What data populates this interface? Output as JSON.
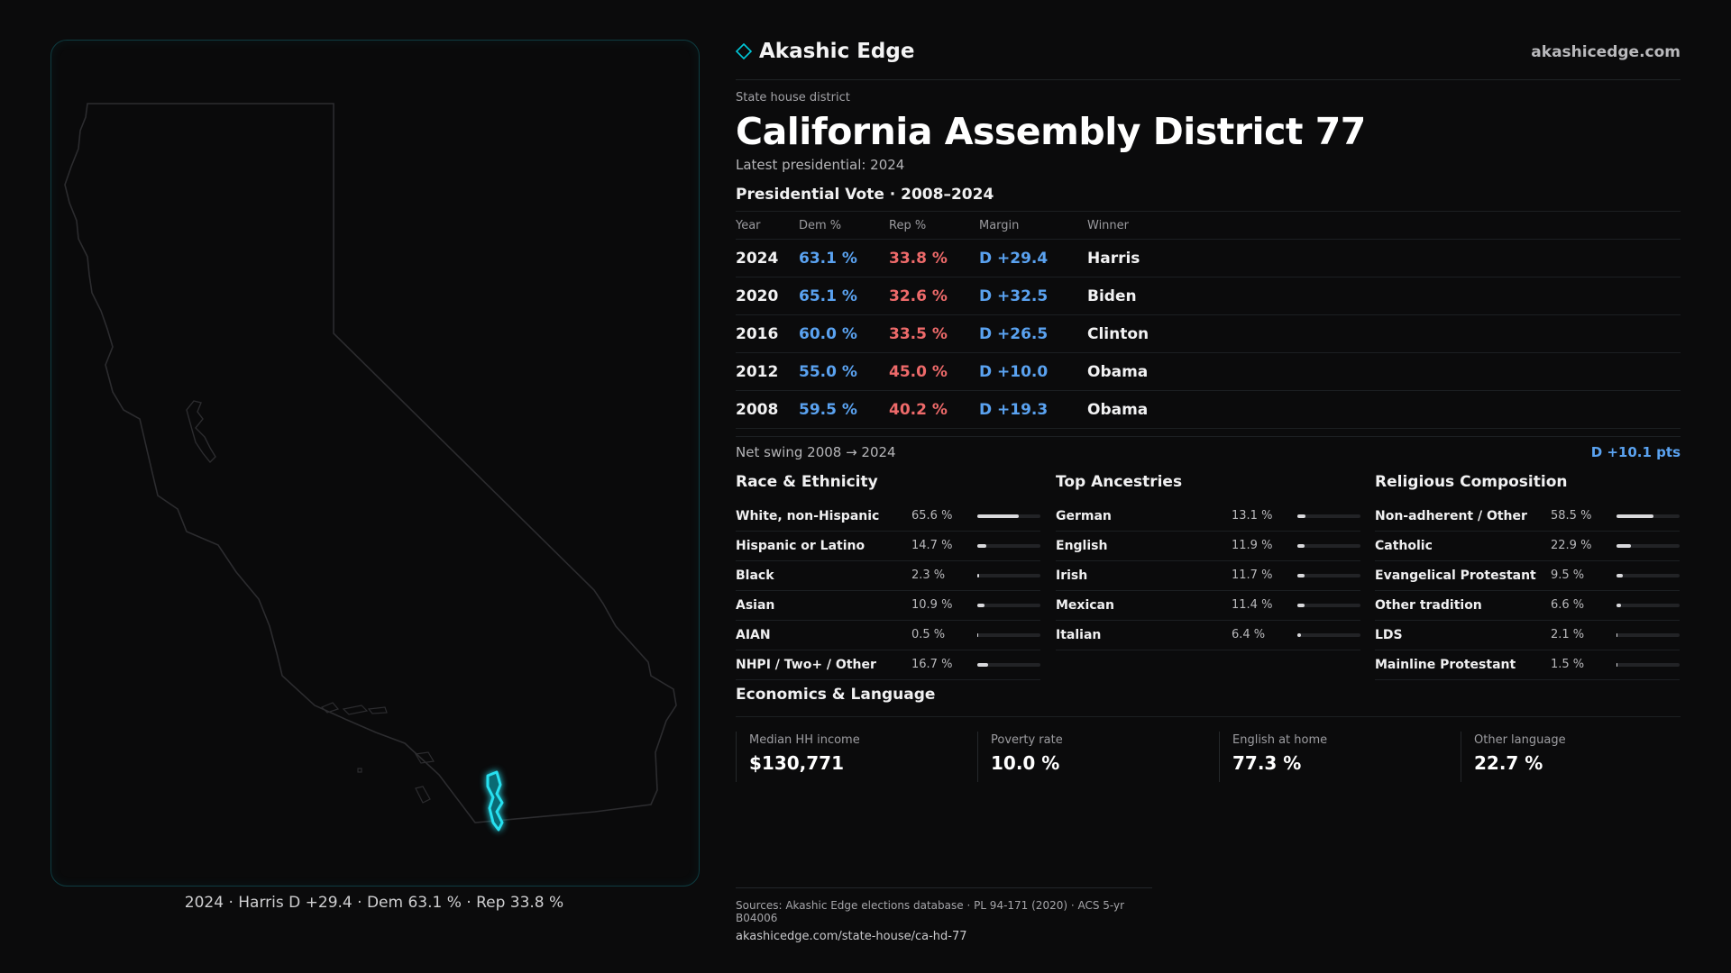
{
  "brand": {
    "name": "Akashic Edge",
    "url": "akashicedge.com",
    "accent": "#00c8d8"
  },
  "header": {
    "eyebrow": "State house district",
    "title": "California Assembly District 77",
    "subtitle": "Latest presidential: 2024"
  },
  "vote_table": {
    "title": "Presidential Vote · 2008–2024",
    "columns": [
      "Year",
      "Dem %",
      "Rep %",
      "Margin",
      "Winner"
    ],
    "rows": [
      {
        "year": "2024",
        "dem": "63.1 %",
        "rep": "33.8 %",
        "margin": "D +29.4",
        "winner": "Harris"
      },
      {
        "year": "2020",
        "dem": "65.1 %",
        "rep": "32.6 %",
        "margin": "D +32.5",
        "winner": "Biden"
      },
      {
        "year": "2016",
        "dem": "60.0 %",
        "rep": "33.5 %",
        "margin": "D +26.5",
        "winner": "Clinton"
      },
      {
        "year": "2012",
        "dem": "55.0 %",
        "rep": "45.0 %",
        "margin": "D +10.0",
        "winner": "Obama"
      },
      {
        "year": "2008",
        "dem": "59.5 %",
        "rep": "40.2 %",
        "margin": "D +19.3",
        "winner": "Obama"
      }
    ],
    "colors": {
      "dem": "#5aa2f0",
      "rep": "#ee6a6a"
    }
  },
  "swing": {
    "label": "Net swing 2008 → 2024",
    "value": "D +10.1 pts"
  },
  "race": {
    "title": "Race & Ethnicity",
    "items": [
      {
        "label": "White, non-Hispanic",
        "pct": "65.6 %",
        "value": 65.6
      },
      {
        "label": "Hispanic or Latino",
        "pct": "14.7 %",
        "value": 14.7
      },
      {
        "label": "Black",
        "pct": "2.3 %",
        "value": 2.3
      },
      {
        "label": "Asian",
        "pct": "10.9 %",
        "value": 10.9
      },
      {
        "label": "AIAN",
        "pct": "0.5 %",
        "value": 0.5
      },
      {
        "label": "NHPI / Two+ / Other",
        "pct": "16.7 %",
        "value": 16.7
      }
    ]
  },
  "ancestry": {
    "title": "Top Ancestries",
    "items": [
      {
        "label": "German",
        "pct": "13.1 %",
        "value": 13.1
      },
      {
        "label": "English",
        "pct": "11.9 %",
        "value": 11.9
      },
      {
        "label": "Irish",
        "pct": "11.7 %",
        "value": 11.7
      },
      {
        "label": "Mexican",
        "pct": "11.4 %",
        "value": 11.4
      },
      {
        "label": "Italian",
        "pct": "6.4 %",
        "value": 6.4
      }
    ]
  },
  "religion": {
    "title": "Religious Composition",
    "items": [
      {
        "label": "Non-adherent / Other",
        "pct": "58.5 %",
        "value": 58.5
      },
      {
        "label": "Catholic",
        "pct": "22.9 %",
        "value": 22.9
      },
      {
        "label": "Evangelical Protestant",
        "pct": "9.5 %",
        "value": 9.5
      },
      {
        "label": "Other tradition",
        "pct": "6.6 %",
        "value": 6.6
      },
      {
        "label": "LDS",
        "pct": "2.1 %",
        "value": 2.1
      },
      {
        "label": "Mainline Protestant",
        "pct": "1.5 %",
        "value": 1.5
      }
    ]
  },
  "economics": {
    "title": "Economics & Language",
    "stats": [
      {
        "label": "Median HH income",
        "value": "$130,771"
      },
      {
        "label": "Poverty rate",
        "value": "10.0 %"
      },
      {
        "label": "English at home",
        "value": "77.3 %"
      },
      {
        "label": "Other language",
        "value": "22.7 %"
      }
    ]
  },
  "map_caption": "2024 · Harris D +29.4 · Dem 63.1 % · Rep 33.8 %",
  "sources": {
    "line1": "Sources: Akashic Edge elections database · PL 94-171 (2020) · ACS 5-yr B04006",
    "line2": "akashicedge.com/state-house/ca-hd-77"
  }
}
